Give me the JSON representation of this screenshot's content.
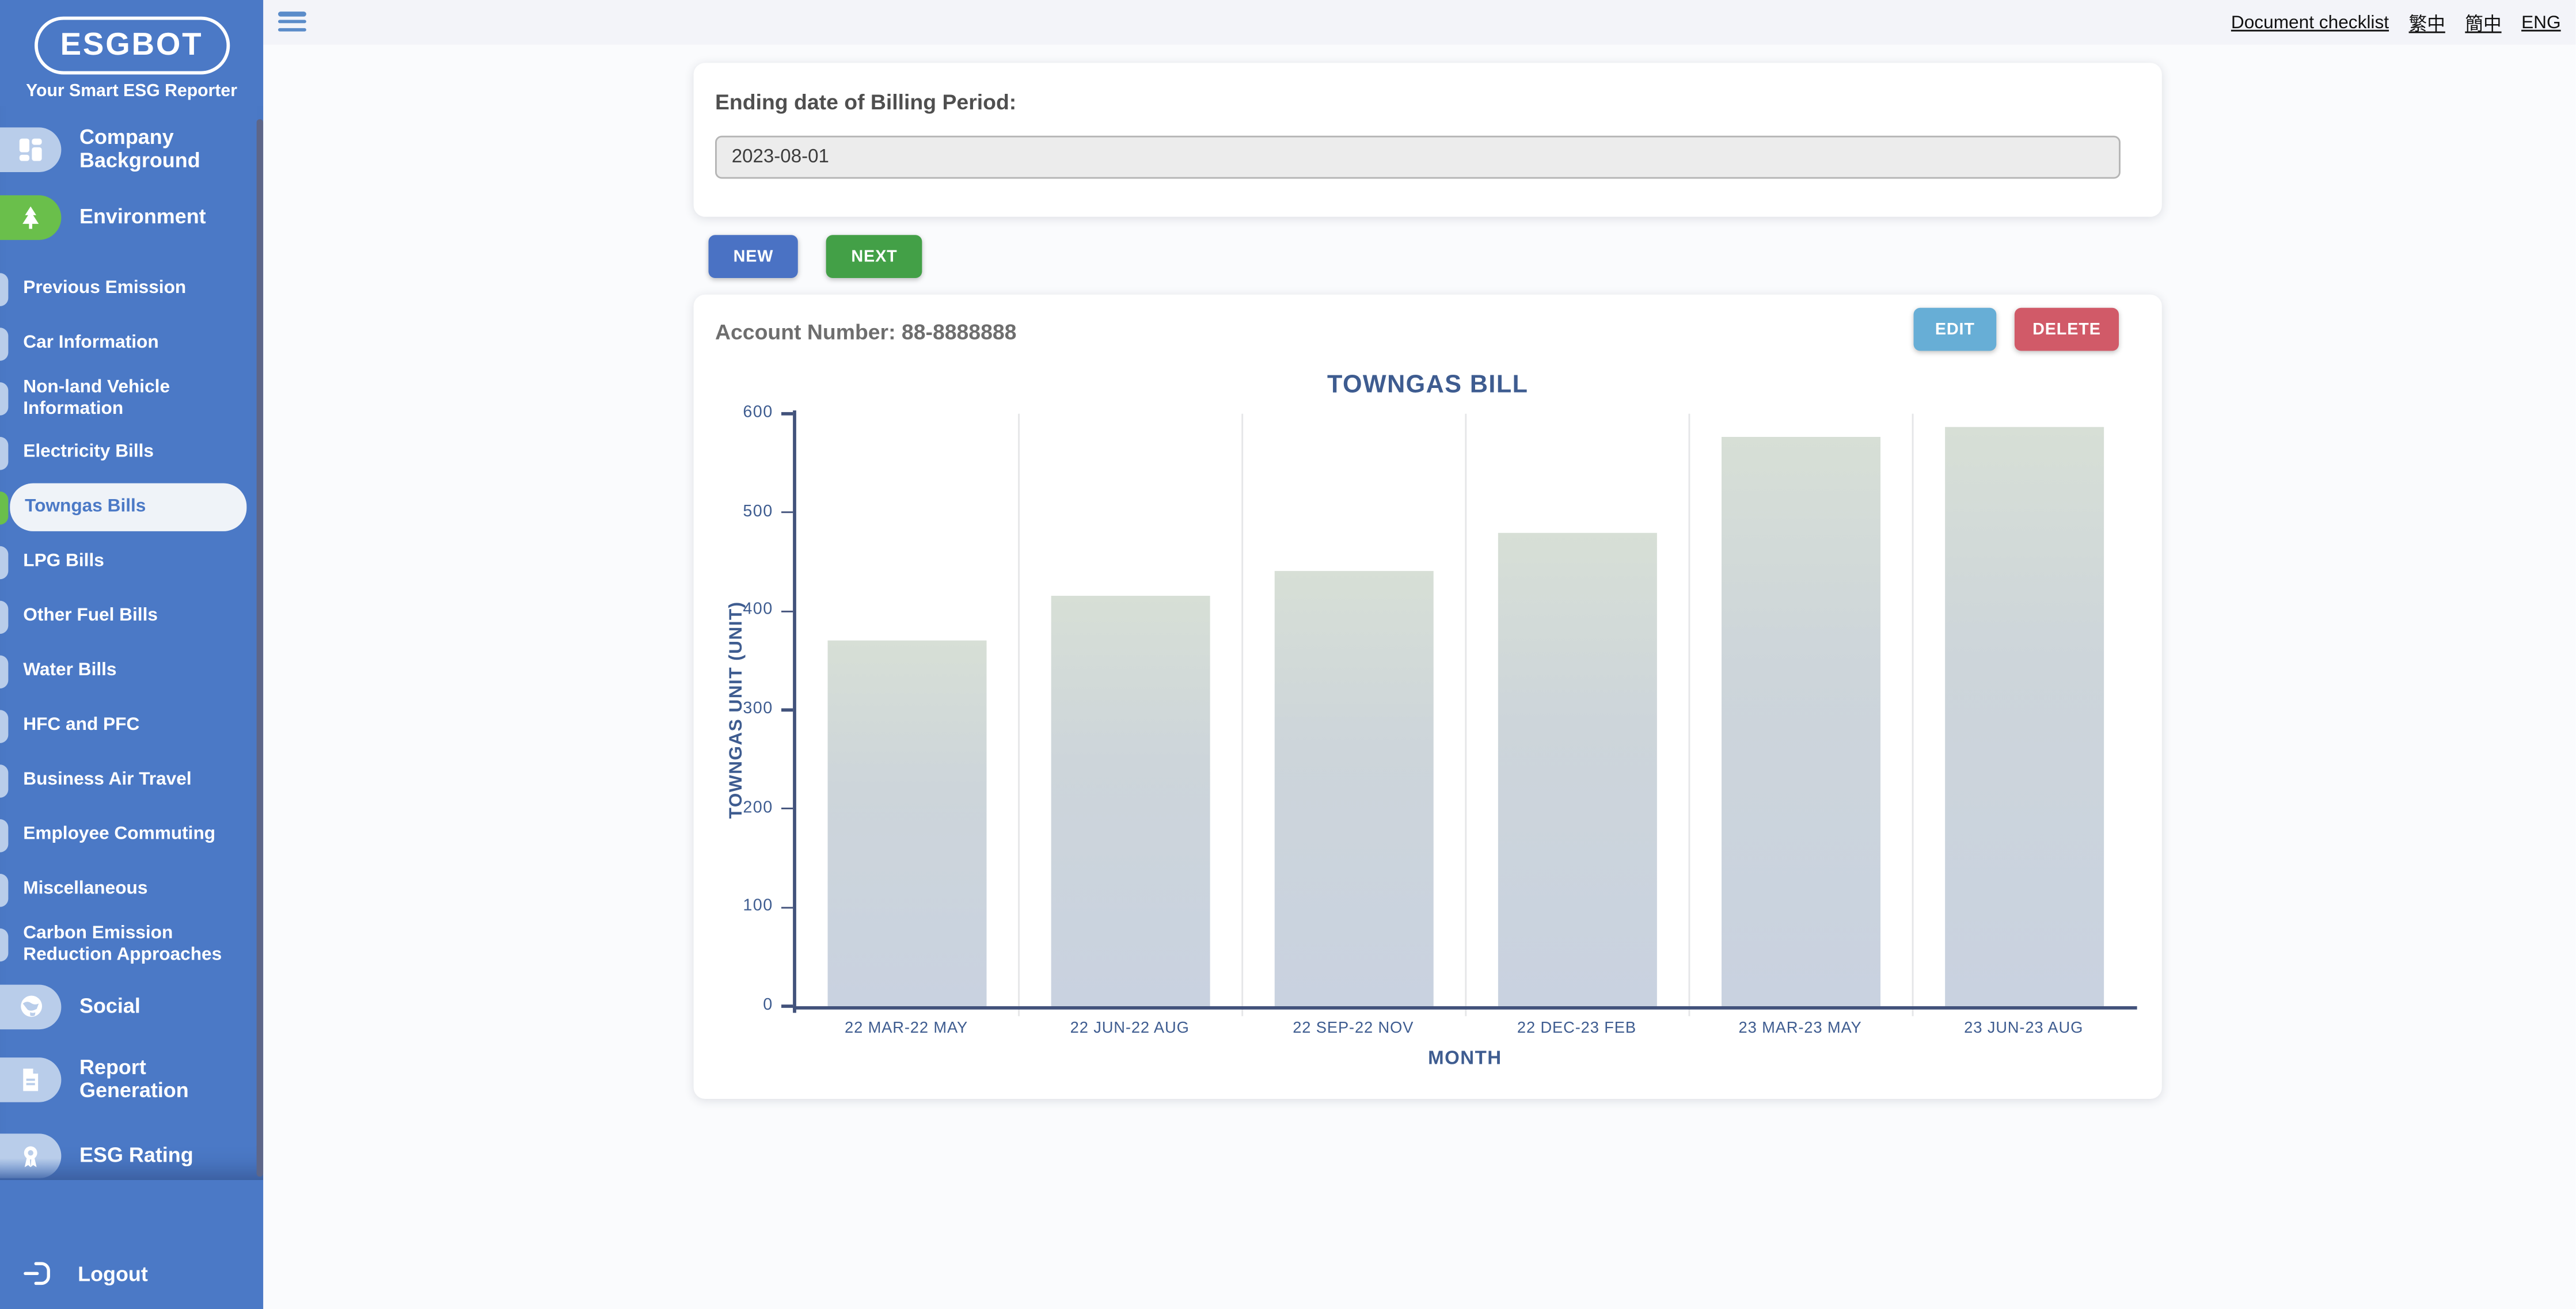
{
  "app": {
    "logo": "ESGBOT",
    "tagline": "Your Smart ESG Reporter"
  },
  "topbar": {
    "links": [
      "Document checklist",
      "繁中",
      "簡中",
      "ENG"
    ]
  },
  "sidebar": {
    "sections": [
      {
        "label": "Company Background",
        "icon": "dashboard-icon"
      },
      {
        "label": "Environment",
        "icon": "tree-icon"
      }
    ],
    "env_items": [
      "Previous Emission",
      "Car Information",
      "Non-land Vehicle Information",
      "Electricity Bills",
      "Towngas Bills",
      "LPG Bills",
      "Other Fuel Bills",
      "Water Bills",
      "HFC and PFC",
      "Business Air Travel",
      "Employee Commuting",
      "Miscellaneous",
      "Carbon Emission Reduction Approaches"
    ],
    "active_item": "Towngas Bills",
    "bottom_sections": [
      {
        "label": "Social",
        "icon": "globe-icon"
      },
      {
        "label": "Report Generation",
        "icon": "document-icon"
      },
      {
        "label": "ESG Rating",
        "icon": "award-icon"
      }
    ],
    "logout_label": "Logout"
  },
  "form": {
    "label": "Ending date of Billing Period:",
    "value": "2023-08-01"
  },
  "actions": {
    "new": "NEW",
    "next": "NEXT",
    "edit": "EDIT",
    "delete": "DELETE"
  },
  "account": {
    "label": "Account Number: 88-8888888"
  },
  "colors": {
    "sidebar_blue": "#4b79c6",
    "pill_light_blue": "#b9cdea",
    "pill_green": "#6abf4b",
    "btn_new": "#4a72c4",
    "btn_next": "#43a047",
    "btn_edit": "#67aed6",
    "btn_delete": "#d15a68",
    "chart_text": "#3e5c90",
    "bar_gradient_top": "#d7dfd6",
    "bar_gradient_bottom": "#c9d2e0"
  },
  "chart_data": {
    "type": "bar",
    "title": "TOWNGAS BILL",
    "xlabel": "MONTH",
    "ylabel": "TOWNGAS UNIT (UNIT)",
    "categories": [
      "22 MAR-22 MAY",
      "22 JUN-22 AUG",
      "22 SEP-22 NOV",
      "22 DEC-23 FEB",
      "23 MAR-23 MAY",
      "23 JUN-23 AUG"
    ],
    "values": [
      370,
      415,
      440,
      480,
      577,
      587
    ],
    "ylim": [
      0,
      600
    ],
    "yticks": [
      0,
      100,
      200,
      300,
      400,
      500,
      600
    ],
    "grid": "vertical-category-separators",
    "legend": "none"
  }
}
